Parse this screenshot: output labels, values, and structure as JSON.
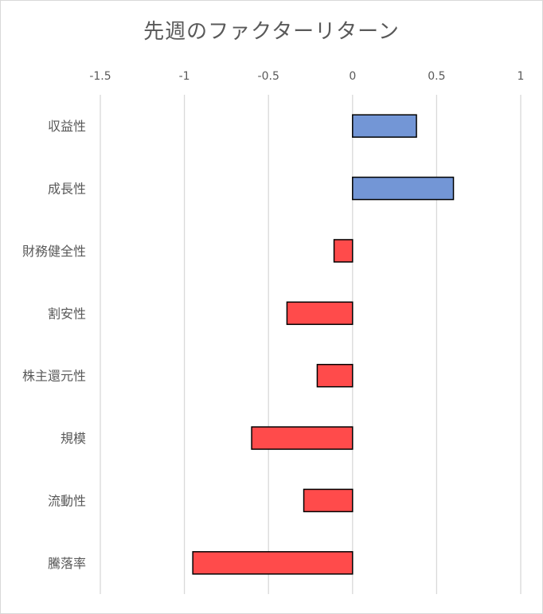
{
  "chart_data": {
    "type": "bar",
    "orientation": "horizontal",
    "title": "先週のファクターリターン",
    "xlabel": "",
    "ylabel": "",
    "xlim": [
      -1.5,
      1
    ],
    "x_ticks": [
      -1.5,
      -1,
      -0.5,
      0,
      0.5,
      1
    ],
    "x_tick_labels": [
      "-1.5",
      "-1",
      "-0.5",
      "0",
      "0.5",
      "1"
    ],
    "x_axis_position": "top",
    "grid": "vertical",
    "legend": "none",
    "categories": [
      "収益性",
      "成長性",
      "財務健全性",
      "割安性",
      "株主還元性",
      "規模",
      "流動性",
      "騰落率"
    ],
    "values": [
      0.38,
      0.6,
      -0.11,
      -0.39,
      -0.21,
      -0.6,
      -0.29,
      -0.95
    ],
    "colors": {
      "positive": "#7396d6",
      "negative": "#ff4b4b",
      "bar_border": "#000000"
    }
  }
}
